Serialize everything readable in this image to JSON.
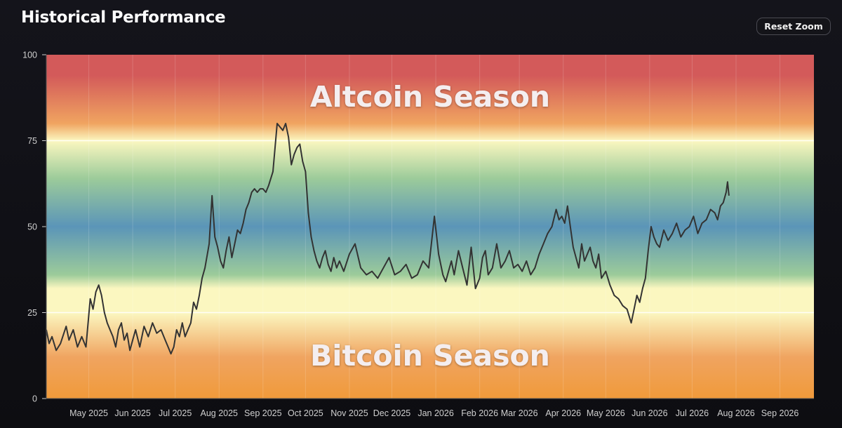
{
  "header": {
    "title": "Historical Performance",
    "reset_zoom_label": "Reset Zoom"
  },
  "chart_data": {
    "type": "line",
    "zones": [
      {
        "label": "Altcoin Season"
      },
      {
        "label": "Bitcoin Season"
      }
    ],
    "xlabel": "",
    "ylabel": "",
    "ylim": [
      0,
      100
    ],
    "yticks": [
      0,
      25,
      50,
      75,
      100
    ],
    "xlim": [
      "2025-04-01",
      "2026-09-25"
    ],
    "xticks": [
      {
        "date": "2025-05-01",
        "label": "May 2025"
      },
      {
        "date": "2025-06-01",
        "label": "Jun 2025"
      },
      {
        "date": "2025-07-01",
        "label": "Jul 2025"
      },
      {
        "date": "2025-08-01",
        "label": "Aug 2025"
      },
      {
        "date": "2025-09-01",
        "label": "Sep 2025"
      },
      {
        "date": "2025-10-01",
        "label": "Oct 2025"
      },
      {
        "date": "2025-11-01",
        "label": "Nov 2025"
      },
      {
        "date": "2025-12-01",
        "label": "Dec 2025"
      },
      {
        "date": "2026-01-01",
        "label": "Jan 2026"
      },
      {
        "date": "2026-02-01",
        "label": "Feb 2026"
      },
      {
        "date": "2026-03-01",
        "label": "Mar 2026"
      },
      {
        "date": "2026-04-01",
        "label": "Apr 2026"
      },
      {
        "date": "2026-05-01",
        "label": "May 2026"
      },
      {
        "date": "2026-06-01",
        "label": "Jun 2026"
      },
      {
        "date": "2026-07-01",
        "label": "Jul 2026"
      },
      {
        "date": "2026-08-01",
        "label": "Aug 2026"
      },
      {
        "date": "2026-09-01",
        "label": "Sep 2026"
      }
    ],
    "reference_lines": [
      25,
      75
    ],
    "colors": {
      "top": "#d35a5a",
      "upper": "#f0a460",
      "light": "#fbf7c0",
      "green": "#9ccb9a",
      "blue": "#5b95b8",
      "bottom": "#f09a3a",
      "line": "#333333",
      "axis_text": "#cfcfcf"
    },
    "series": [
      {
        "x": [
          "2025-04-01",
          "2025-04-03",
          "2025-04-05",
          "2025-04-08",
          "2025-04-11",
          "2025-04-15",
          "2025-04-17",
          "2025-04-20",
          "2025-04-23",
          "2025-04-26",
          "2025-04-29",
          "2025-05-02",
          "2025-05-04",
          "2025-05-06",
          "2025-05-08",
          "2025-05-10",
          "2025-05-12",
          "2025-05-14",
          "2025-05-16",
          "2025-05-18",
          "2025-05-20",
          "2025-05-22",
          "2025-05-24",
          "2025-05-26",
          "2025-05-28",
          "2025-05-30",
          "2025-06-01",
          "2025-06-03",
          "2025-06-06",
          "2025-06-09",
          "2025-06-12",
          "2025-06-15",
          "2025-06-18",
          "2025-06-21",
          "2025-06-24",
          "2025-06-26",
          "2025-06-28",
          "2025-06-30",
          "2025-07-02",
          "2025-07-04",
          "2025-07-06",
          "2025-07-08",
          "2025-07-10",
          "2025-07-12",
          "2025-07-14",
          "2025-07-16",
          "2025-07-18",
          "2025-07-20",
          "2025-07-22",
          "2025-07-25",
          "2025-07-27",
          "2025-07-29",
          "2025-07-31",
          "2025-08-02",
          "2025-08-04",
          "2025-08-06",
          "2025-08-08",
          "2025-08-10",
          "2025-08-12",
          "2025-08-14",
          "2025-08-16",
          "2025-08-18",
          "2025-08-20",
          "2025-08-22",
          "2025-08-24",
          "2025-08-26",
          "2025-08-28",
          "2025-08-30",
          "2025-09-01",
          "2025-09-03",
          "2025-09-05",
          "2025-09-08",
          "2025-09-11",
          "2025-09-13",
          "2025-09-15",
          "2025-09-17",
          "2025-09-19",
          "2025-09-21",
          "2025-09-23",
          "2025-09-25",
          "2025-09-27",
          "2025-09-29",
          "2025-10-01",
          "2025-10-03",
          "2025-10-05",
          "2025-10-07",
          "2025-10-09",
          "2025-10-11",
          "2025-10-13",
          "2025-10-15",
          "2025-10-17",
          "2025-10-19",
          "2025-10-21",
          "2025-10-23",
          "2025-10-25",
          "2025-10-28",
          "2025-11-01",
          "2025-11-05",
          "2025-11-09",
          "2025-11-13",
          "2025-11-17",
          "2025-11-21",
          "2025-11-25",
          "2025-11-29",
          "2025-12-03",
          "2025-12-07",
          "2025-12-11",
          "2025-12-15",
          "2025-12-19",
          "2025-12-23",
          "2025-12-27",
          "2025-12-31",
          "2026-01-03",
          "2026-01-06",
          "2026-01-08",
          "2026-01-10",
          "2026-01-12",
          "2026-01-14",
          "2026-01-17",
          "2026-01-20",
          "2026-01-23",
          "2026-01-26",
          "2026-01-29",
          "2026-02-01",
          "2026-02-03",
          "2026-02-05",
          "2026-02-07",
          "2026-02-10",
          "2026-02-13",
          "2026-02-16",
          "2026-02-19",
          "2026-02-22",
          "2026-02-25",
          "2026-02-28",
          "2026-03-03",
          "2026-03-06",
          "2026-03-09",
          "2026-03-12",
          "2026-03-15",
          "2026-03-18",
          "2026-03-21",
          "2026-03-24",
          "2026-03-27",
          "2026-03-29",
          "2026-03-31",
          "2026-04-02",
          "2026-04-04",
          "2026-04-06",
          "2026-04-08",
          "2026-04-10",
          "2026-04-12",
          "2026-04-14",
          "2026-04-16",
          "2026-04-18",
          "2026-04-20",
          "2026-04-22",
          "2026-04-24",
          "2026-04-26",
          "2026-04-28",
          "2026-05-01",
          "2026-05-04",
          "2026-05-07",
          "2026-05-10",
          "2026-05-13",
          "2026-05-16",
          "2026-05-19",
          "2026-05-21",
          "2026-05-23",
          "2026-05-25",
          "2026-05-27",
          "2026-05-29",
          "2026-05-31",
          "2026-06-02",
          "2026-06-04",
          "2026-06-06",
          "2026-06-08",
          "2026-06-11",
          "2026-06-14",
          "2026-06-17",
          "2026-06-20",
          "2026-06-23",
          "2026-06-26",
          "2026-06-29",
          "2026-07-02",
          "2026-07-05",
          "2026-07-08",
          "2026-07-11",
          "2026-07-14",
          "2026-07-17",
          "2026-07-19",
          "2026-07-21",
          "2026-07-23",
          "2026-07-25",
          "2026-07-26",
          "2026-07-27"
        ],
        "y": [
          20,
          16,
          18,
          14,
          16,
          21,
          17,
          20,
          15,
          18,
          15,
          29,
          26,
          31,
          33,
          30,
          25,
          22,
          20,
          18,
          15,
          20,
          22,
          17,
          19,
          14,
          17,
          20,
          15,
          21,
          18,
          22,
          19,
          20,
          17,
          15,
          13,
          15,
          20,
          18,
          22,
          18,
          20,
          22,
          28,
          26,
          30,
          35,
          38,
          45,
          59,
          47,
          44,
          40,
          38,
          43,
          47,
          41,
          45,
          49,
          48,
          51,
          55,
          57,
          60,
          61,
          60,
          61,
          61,
          60,
          62,
          66,
          80,
          79,
          78,
          80,
          76,
          68,
          71,
          73,
          74,
          69,
          66,
          54,
          47,
          43,
          40,
          38,
          41,
          43,
          39,
          37,
          41,
          38,
          40,
          37,
          42,
          45,
          38,
          36,
          37,
          35,
          38,
          41,
          36,
          37,
          39,
          35,
          36,
          40,
          38,
          53,
          42,
          36,
          34,
          37,
          40,
          36,
          43,
          38,
          33,
          44,
          32,
          35,
          41,
          43,
          36,
          38,
          45,
          38,
          40,
          43,
          38,
          39,
          37,
          40,
          36,
          38,
          42,
          45,
          48,
          50,
          55,
          52,
          53,
          51,
          56,
          50,
          44,
          41,
          38,
          45,
          40,
          42,
          44,
          40,
          38,
          42,
          35,
          37,
          33,
          30,
          29,
          27,
          26,
          22,
          26,
          30,
          28,
          32,
          35,
          43,
          50,
          47,
          45,
          44,
          49,
          46,
          48,
          51,
          47,
          49,
          50,
          53,
          48,
          51,
          52,
          55,
          54,
          52,
          56,
          57,
          60,
          63,
          59
        ]
      }
    ]
  }
}
